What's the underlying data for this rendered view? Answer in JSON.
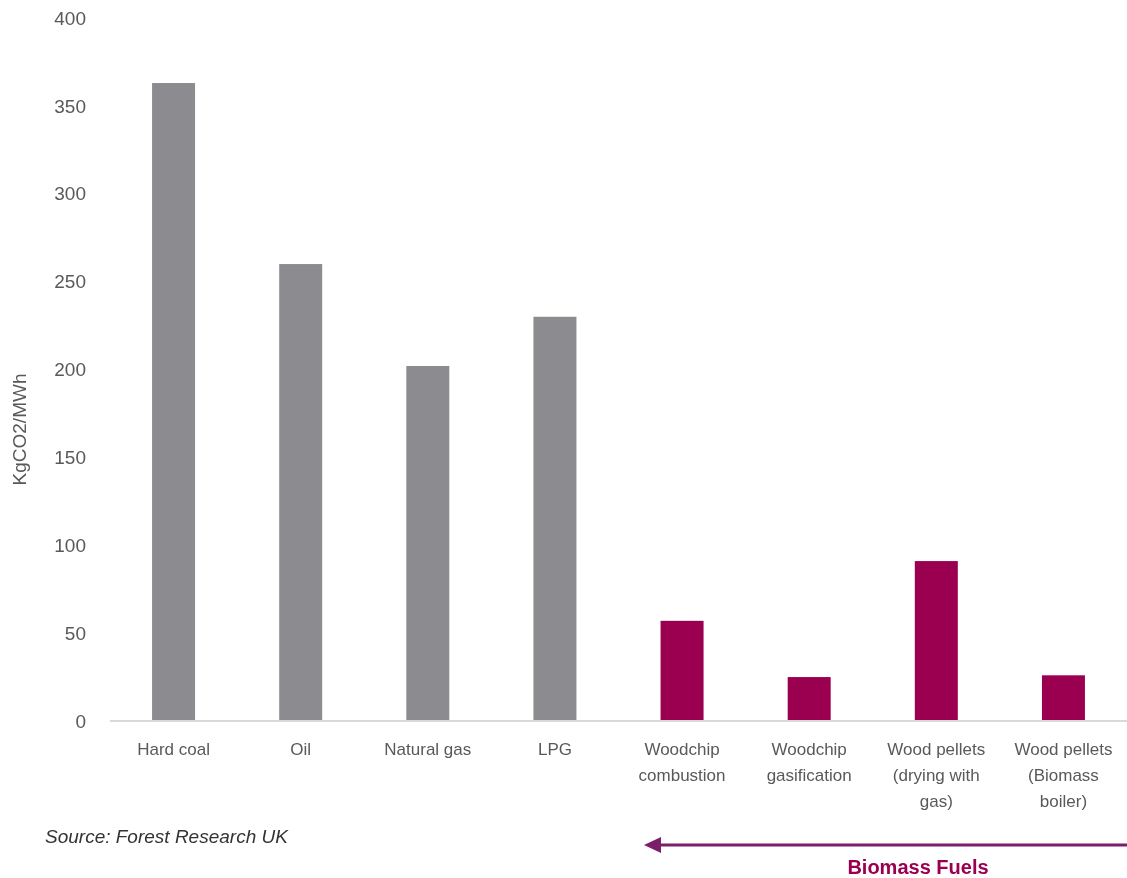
{
  "chart_data": {
    "type": "bar",
    "ylabel": "KgCO2/MWh",
    "categories": [
      "Hard coal",
      "Oil",
      "Natural gas",
      "LPG",
      "Woodchip combustion",
      "Woodchip gasification",
      "Wood pellets (drying with gas)",
      "Wood pellets (Biomass boiler)"
    ],
    "values": [
      363,
      260,
      202,
      230,
      57,
      25,
      91,
      26
    ],
    "colors": [
      "#8c8c90",
      "#8c8c90",
      "#8c8c90",
      "#8c8c90",
      "#9b0050",
      "#9b0050",
      "#9b0050",
      "#9b0050"
    ],
    "ylim": [
      0,
      400
    ],
    "yticks": [
      0,
      50,
      100,
      150,
      200,
      250,
      300,
      350,
      400
    ],
    "grid": false,
    "annotations": [
      "Source: Forest Research UK",
      "Biomass Fuels"
    ]
  }
}
